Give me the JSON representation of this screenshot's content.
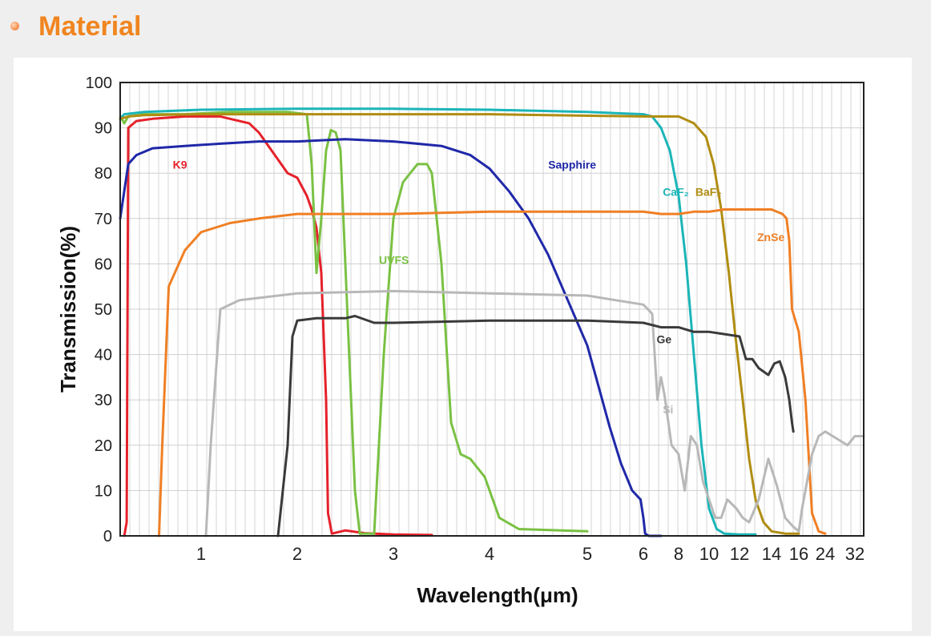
{
  "header": {
    "title": "Material"
  },
  "chart_data": {
    "type": "line",
    "title": "",
    "xlabel": "Wavelength(μm)",
    "ylabel": "Transmission(%)",
    "ylim": [
      0,
      100
    ],
    "yticks": [
      0,
      10,
      20,
      30,
      40,
      50,
      60,
      70,
      80,
      90,
      100
    ],
    "xticks": [
      {
        "v": 1,
        "label": "1"
      },
      {
        "v": 2,
        "label": "2"
      },
      {
        "v": 3,
        "label": "3"
      },
      {
        "v": 4,
        "label": "4"
      },
      {
        "v": 5,
        "label": "5"
      },
      {
        "v": 6,
        "label": "6"
      },
      {
        "v": 8,
        "label": "8"
      },
      {
        "v": 10,
        "label": "10"
      },
      {
        "v": 12,
        "label": "12"
      },
      {
        "v": 14,
        "label": "14"
      },
      {
        "v": 16,
        "label": "16"
      },
      {
        "v": 24,
        "label": "24"
      },
      {
        "v": 32,
        "label": "32"
      }
    ],
    "x_scale": "piecewise: linear 0–6 μm, compressed 6–16 μm, compressed 16–32 μm",
    "grid": true,
    "legend": "none (inline curve labels)",
    "series": [
      {
        "name": "K9",
        "color": "#e5212a",
        "label_at": [
          0.65,
          81
        ],
        "x": [
          0.05,
          0.08,
          0.1,
          0.2,
          0.4,
          0.8,
          1.0,
          1.2,
          1.3,
          1.5,
          1.6,
          1.7,
          1.8,
          1.9,
          2.0,
          2.1,
          2.15,
          2.2,
          2.25,
          2.3,
          2.32,
          2.36,
          2.5,
          2.7,
          3.0,
          3.4
        ],
        "y": [
          0,
          3,
          90,
          91.5,
          92,
          92.5,
          92.5,
          92.5,
          92,
          91,
          89,
          86,
          83,
          80,
          79,
          75,
          72,
          68,
          58,
          30,
          5,
          0.5,
          1.2,
          0.6,
          0.3,
          0.2
        ]
      },
      {
        "name": "UVFS",
        "color": "#7ac143",
        "label_at": [
          2.85,
          60
        ],
        "x": [
          0.02,
          0.05,
          0.1,
          0.3,
          0.8,
          1.3,
          1.5,
          1.9,
          2.1,
          2.15,
          2.2,
          2.25,
          2.3,
          2.35,
          2.4,
          2.45,
          2.5,
          2.6,
          2.65,
          2.8,
          2.9,
          3.0,
          3.1,
          3.25,
          3.35,
          3.4,
          3.5,
          3.6,
          3.7,
          3.8,
          3.95,
          4.1,
          4.3,
          5.0
        ],
        "y": [
          92,
          91,
          92.5,
          93,
          93,
          93.5,
          93.5,
          93.5,
          93,
          82,
          58,
          70,
          85,
          89.5,
          89,
          85,
          60,
          10,
          0.5,
          0.5,
          40,
          70,
          78,
          82,
          82,
          80,
          60,
          25,
          18,
          17,
          13,
          4,
          1.5,
          1
        ]
      },
      {
        "name": "Sapphire",
        "color": "#1f28a8",
        "label_at": [
          4.6,
          81
        ],
        "x": [
          0.0,
          0.1,
          0.2,
          0.4,
          0.8,
          1.2,
          1.6,
          2.0,
          2.5,
          3.0,
          3.5,
          3.8,
          4.0,
          4.2,
          4.4,
          4.6,
          4.8,
          5.0,
          5.2,
          5.4,
          5.6,
          5.8,
          5.95,
          6.0,
          6.1,
          6.3,
          7.0
        ],
        "y": [
          70,
          82,
          84,
          85.5,
          86,
          86.5,
          87,
          87,
          87.5,
          87,
          86,
          84,
          81,
          76,
          70,
          62,
          52,
          42,
          33,
          24,
          16,
          10,
          8,
          4,
          0.5,
          0,
          0
        ]
      },
      {
        "name": "CaF₂",
        "color": "#1bb5b8",
        "label_at": [
          7.1,
          75
        ],
        "x": [
          0.0,
          0.05,
          0.3,
          1.0,
          2.0,
          3.0,
          4.0,
          5.0,
          6.0,
          6.5,
          7.0,
          7.5,
          8.0,
          8.5,
          9.0,
          9.5,
          10.0,
          10.5,
          11.0,
          12.0,
          13.0
        ],
        "y": [
          92,
          93,
          93.5,
          94,
          94.2,
          94.2,
          94,
          93.5,
          93,
          92.5,
          90,
          85,
          75,
          60,
          40,
          20,
          6,
          1.5,
          0.5,
          0.3,
          0.3
        ]
      },
      {
        "name": "BaF₂",
        "color": "#b08d12",
        "label_at": [
          9.1,
          75
        ],
        "x": [
          0.0,
          0.1,
          0.3,
          1.0,
          2.0,
          4.0,
          6.0,
          8.0,
          9.0,
          9.8,
          10.3,
          10.8,
          11.3,
          11.7,
          12.2,
          12.6,
          13.0,
          13.5,
          14.0,
          15.0,
          16.0
        ],
        "y": [
          92,
          92.5,
          92.8,
          93,
          93,
          93,
          92.5,
          92.5,
          91,
          88,
          82,
          72,
          58,
          45,
          30,
          17,
          8,
          3,
          1,
          0.5,
          0.5
        ]
      },
      {
        "name": "ZnSe",
        "color": "#f07f24",
        "label_at": [
          13.1,
          65
        ],
        "x": [
          0.48,
          0.52,
          0.6,
          0.8,
          1.0,
          1.3,
          1.6,
          2.0,
          3.0,
          4.0,
          5.0,
          6.0,
          7.0,
          8.0,
          9.0,
          10.0,
          11.0,
          12.0,
          13.0,
          14.0,
          14.8,
          15.1,
          15.3,
          15.5,
          16.0,
          18.0,
          20.0,
          22.0,
          24.0
        ],
        "y": [
          0,
          20,
          55,
          63,
          67,
          69,
          70,
          71,
          71,
          71.5,
          71.5,
          71.5,
          71,
          71,
          71.5,
          71.5,
          72,
          72,
          72,
          72,
          71,
          70,
          65,
          50,
          45,
          30,
          5,
          1,
          0.5
        ]
      },
      {
        "name": "Si",
        "color": "#b8b8b8",
        "label_at": [
          7.1,
          27
        ],
        "x": [
          1.05,
          1.1,
          1.2,
          1.4,
          2.0,
          3.0,
          4.0,
          5.0,
          5.5,
          6.0,
          6.5,
          6.8,
          7.0,
          7.2,
          7.6,
          8.0,
          8.4,
          8.8,
          9.2,
          9.6,
          10.0,
          10.4,
          10.8,
          11.2,
          11.8,
          12.2,
          12.6,
          13.2,
          13.8,
          14.4,
          15.0,
          15.6,
          16.0,
          17.0,
          18.5,
          20.0,
          22.0,
          24.0,
          26.0,
          28.0,
          30.0,
          32.0,
          33.0
        ],
        "y": [
          0,
          20,
          50,
          52,
          53.5,
          54,
          53.5,
          53,
          52,
          51,
          49,
          30,
          35,
          31,
          20,
          18,
          10,
          22,
          20,
          12,
          8,
          4,
          4,
          8,
          6,
          4,
          3,
          8,
          17,
          11,
          4,
          2,
          1,
          6,
          12,
          18,
          22,
          23,
          22,
          21,
          20,
          22,
          22
        ]
      },
      {
        "name": "Ge",
        "color": "#3a3a3a",
        "label_at": [
          6.75,
          42.5
        ],
        "x": [
          1.8,
          1.9,
          1.95,
          2.0,
          2.2,
          2.5,
          2.6,
          2.8,
          3.0,
          4.0,
          5.0,
          6.0,
          7.0,
          8.0,
          9.0,
          10.0,
          11.0,
          12.0,
          12.4,
          12.8,
          13.2,
          13.8,
          14.2,
          14.6,
          15.0,
          15.3,
          15.5,
          15.6
        ],
        "y": [
          0,
          20,
          44,
          47.5,
          48,
          48,
          48.5,
          47,
          47,
          47.5,
          47.5,
          47,
          46,
          46,
          45,
          45,
          44.5,
          44,
          39,
          39,
          37,
          35.5,
          38,
          38.5,
          35,
          30,
          25,
          23
        ]
      }
    ]
  }
}
